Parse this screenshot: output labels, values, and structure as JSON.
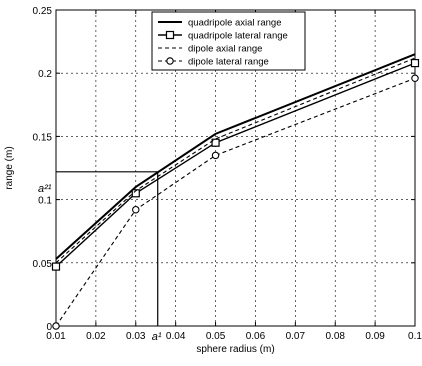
{
  "chart_data": {
    "type": "line",
    "xlabel": "sphere radius (m)",
    "ylabel": "range (m)",
    "xlim": [
      0.01,
      0.1
    ],
    "ylim": [
      0,
      0.25
    ],
    "x_ticks": [
      "0.01",
      "0.02",
      "0.03",
      "0.04",
      "0.05",
      "0.06",
      "0.07",
      "0.08",
      "0.09",
      "0.1"
    ],
    "y_ticks": [
      "0",
      "0.05",
      "0.1",
      "0.15",
      "0.2",
      "0.25"
    ],
    "grid": true,
    "legend_position": "top-right",
    "series": [
      {
        "name": "quadripole axial range",
        "style": "solid",
        "marker": "none",
        "x": [
          0.01,
          0.03,
          0.05,
          0.1
        ],
        "y": [
          0.053,
          0.11,
          0.152,
          0.215
        ]
      },
      {
        "name": "quadripole lateral range",
        "style": "solid",
        "marker": "square",
        "x": [
          0.01,
          0.03,
          0.05,
          0.1
        ],
        "y": [
          0.047,
          0.105,
          0.145,
          0.208
        ]
      },
      {
        "name": "dipole axial range",
        "style": "dashed",
        "marker": "none",
        "x": [
          0.01,
          0.03,
          0.05,
          0.1
        ],
        "y": [
          0.05,
          0.107,
          0.148,
          0.212
        ]
      },
      {
        "name": "dipole lateral range",
        "style": "dashed",
        "marker": "circle",
        "x": [
          0.01,
          0.03,
          0.05,
          0.1
        ],
        "y": [
          0.0,
          0.092,
          0.135,
          0.196
        ]
      }
    ],
    "annotations": {
      "hline": {
        "y": 0.122,
        "x_from": 0.01,
        "x_to": 0.0355,
        "label": "a²¹"
      },
      "vline": {
        "x": 0.0355,
        "y_from": 0,
        "y_to": 0.122,
        "label": "a¹"
      }
    }
  }
}
